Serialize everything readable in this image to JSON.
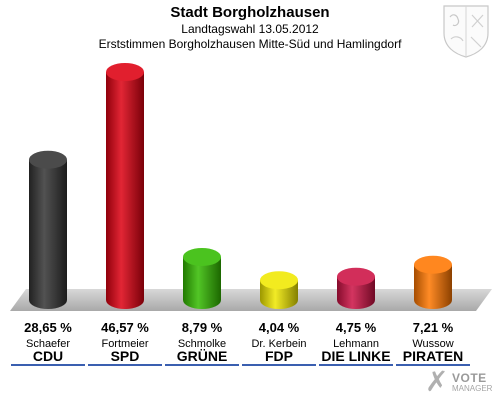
{
  "header": {
    "title": "Stadt Borgholzhausen",
    "subtitle": "Landtagswahl 13.05.2012",
    "subtitle2": "Erststimmen Borgholzhausen Mitte-Süd und Hamlingdorf"
  },
  "logo": {
    "mark": "✗",
    "line1": "VOTE",
    "line2": "MANAGER"
  },
  "chart_data": {
    "type": "bar",
    "title": "Stadt Borgholzhausen",
    "ylim": [
      0,
      50
    ],
    "grid": false,
    "categories": [
      "CDU",
      "SPD",
      "GRÜNE",
      "FDP",
      "DIE LINKE",
      "PIRATEN"
    ],
    "candidates": [
      "Schaefer",
      "Fortmeier",
      "Schmolke",
      "Dr. Kerbein",
      "Lehmann",
      "Wussow"
    ],
    "values": [
      28.65,
      46.57,
      8.79,
      4.04,
      4.75,
      7.21
    ],
    "labels": [
      "28,65 %",
      "46,57 %",
      "8,79 %",
      "4,04 %",
      "4,75 %",
      "7,21 %"
    ],
    "colors": [
      "#333333",
      "#dd0011",
      "#33bb00",
      "#f0e800",
      "#cc1144",
      "#ff7700"
    ]
  }
}
